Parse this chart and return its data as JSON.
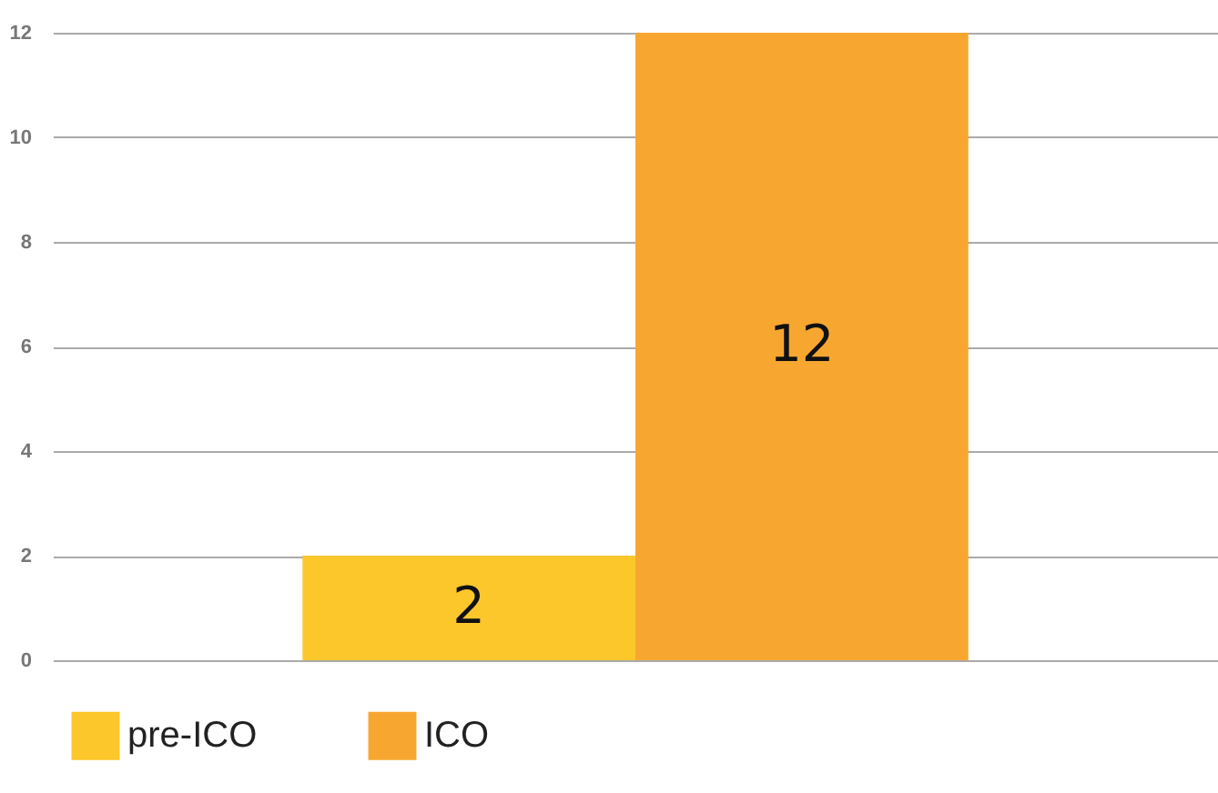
{
  "chart_data": {
    "type": "bar",
    "categories": [
      null
    ],
    "series": [
      {
        "name": "pre-ICO",
        "color": "#fcc72a",
        "values": [
          2
        ]
      },
      {
        "name": "ICO",
        "color": "#f7a730",
        "values": [
          12
        ]
      }
    ],
    "ylim": [
      0,
      12
    ],
    "yticks": [
      0,
      2,
      4,
      6,
      8,
      10,
      12
    ],
    "grid": "y",
    "legend": "bottom",
    "data_labels": true,
    "tick_labels": "y"
  }
}
